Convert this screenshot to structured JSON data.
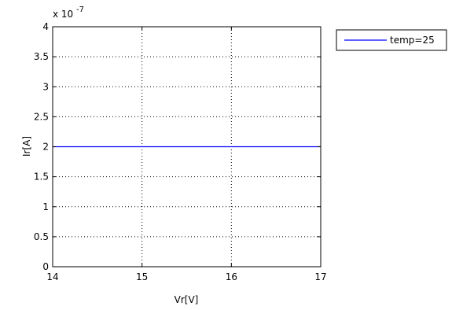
{
  "chart_data": {
    "type": "line",
    "xlabel": "Vr[V]",
    "ylabel": "Ir[A]",
    "xlim": [
      14,
      17
    ],
    "ylim": [
      0,
      4e-07
    ],
    "x_ticks": [
      "14",
      "15",
      "16",
      "17"
    ],
    "y_ticks": [
      "0",
      "0.5",
      "1",
      "1.5",
      "2",
      "2.5",
      "3",
      "3.5",
      "4"
    ],
    "y_multiplier_base": "x 10",
    "y_multiplier_exp": "-7",
    "grid": true,
    "legend_position": "outside-top-right",
    "series": [
      {
        "name": "temp=25",
        "color": "#0000ff",
        "x": [
          14,
          17
        ],
        "y": [
          2e-07,
          2e-07
        ]
      }
    ]
  }
}
